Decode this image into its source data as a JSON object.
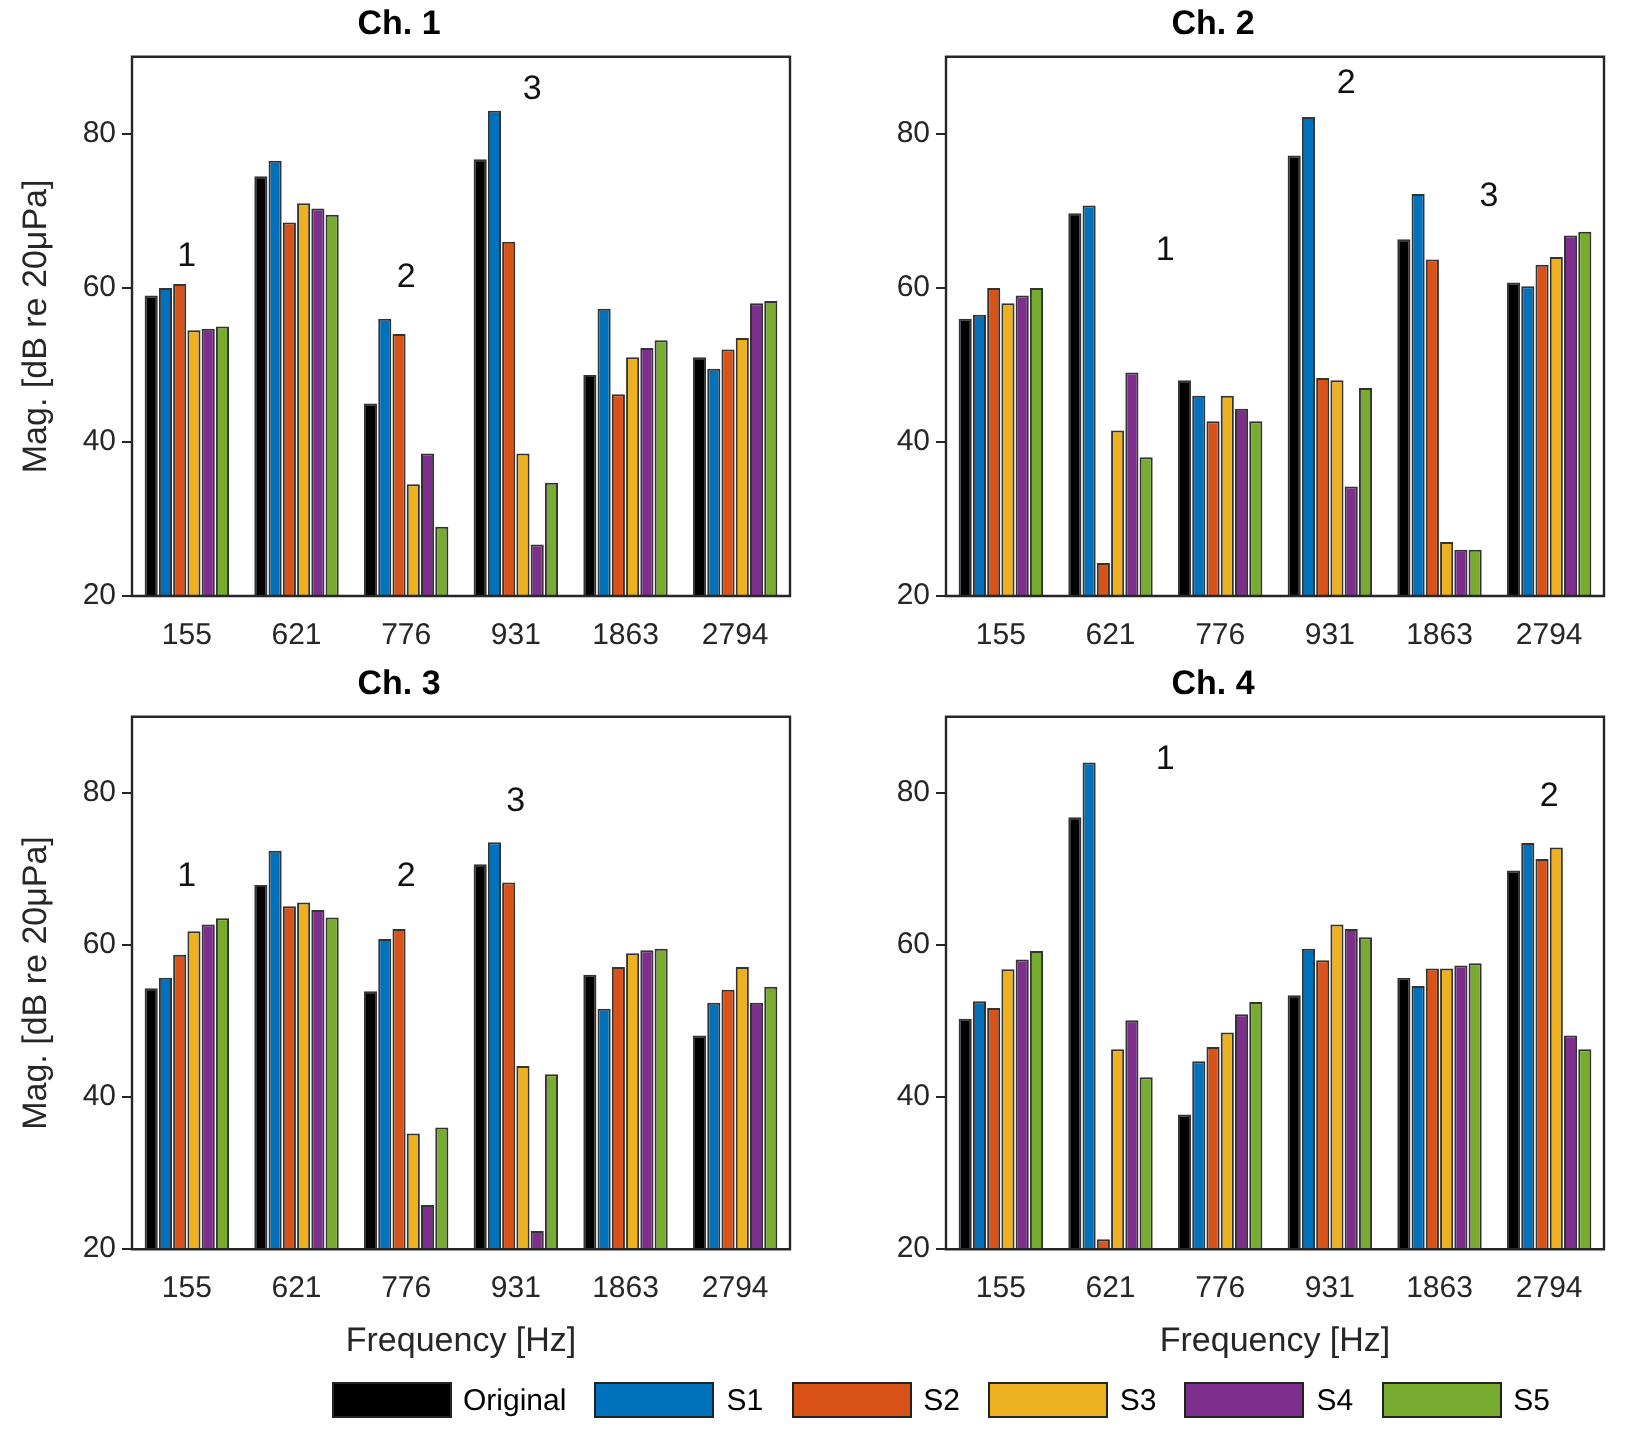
{
  "chart_data": [
    {
      "type": "bar",
      "title": "Ch. 1",
      "ylabel": "Mag. [dB re 20μPa]",
      "categories": [
        "155",
        "621",
        "776",
        "931",
        "1863",
        "2794"
      ],
      "ylim": [
        20,
        90
      ],
      "yticks": [
        20,
        40,
        60,
        80
      ],
      "grid": false,
      "legend": "bottom",
      "series": [
        {
          "name": "Original",
          "color": "#000000",
          "values": [
            59,
            74.5,
            45,
            76.7,
            48.7,
            51
          ]
        },
        {
          "name": "S1",
          "color": "#0072bd",
          "values": [
            60,
            76.5,
            56,
            83,
            57.3,
            49.5
          ]
        },
        {
          "name": "S2",
          "color": "#d95319",
          "values": [
            60.5,
            68.5,
            54,
            66,
            46.2,
            52
          ]
        },
        {
          "name": "S3",
          "color": "#edb120",
          "values": [
            54.5,
            71,
            34.5,
            38.5,
            51,
            53.5
          ]
        },
        {
          "name": "S4",
          "color": "#7e2f8e",
          "values": [
            54.7,
            70.3,
            38.5,
            26.7,
            52.2,
            58
          ]
        },
        {
          "name": "S5",
          "color": "#77ac30",
          "values": [
            55,
            69.5,
            29,
            34.7,
            53.2,
            58.3
          ]
        }
      ],
      "annotations": [
        "1",
        "2",
        "3"
      ]
    },
    {
      "type": "bar",
      "title": "Ch. 2",
      "categories": [
        "155",
        "621",
        "776",
        "931",
        "1863",
        "2794"
      ],
      "ylim": [
        20,
        90
      ],
      "yticks": [
        20,
        40,
        60,
        80
      ],
      "grid": false,
      "series": [
        {
          "color": "#000000",
          "values": [
            56,
            69.7,
            48,
            77.2,
            66.3,
            60.7
          ]
        },
        {
          "color": "#0072bd",
          "values": [
            56.5,
            70.7,
            46,
            82.2,
            72.2,
            60.2
          ]
        },
        {
          "color": "#d95319",
          "values": [
            60,
            24.3,
            42.7,
            48.3,
            63.7,
            63
          ]
        },
        {
          "color": "#edb120",
          "values": [
            58,
            41.5,
            46,
            48,
            27,
            64
          ]
        },
        {
          "color": "#7e2f8e",
          "values": [
            59,
            49,
            44.3,
            34.2,
            26,
            66.8
          ]
        },
        {
          "color": "#77ac30",
          "values": [
            60,
            38,
            42.7,
            47,
            26,
            67.3
          ]
        }
      ],
      "annotations": [
        "1",
        "2",
        "3"
      ]
    },
    {
      "type": "bar",
      "title": "Ch. 3",
      "xlabel": "Frequency [Hz]",
      "ylabel": "Mag. [dB re 20μPa]",
      "categories": [
        "155",
        "621",
        "776",
        "931",
        "1863",
        "2794"
      ],
      "ylim": [
        20,
        90
      ],
      "yticks": [
        20,
        40,
        60,
        80
      ],
      "grid": false,
      "series": [
        {
          "color": "#000000",
          "values": [
            54.3,
            67.9,
            53.9,
            70.6,
            56.1,
            48.1
          ]
        },
        {
          "color": "#0072bd",
          "values": [
            55.7,
            72.4,
            60.8,
            73.5,
            51.6,
            52.4
          ]
        },
        {
          "color": "#d95319",
          "values": [
            58.7,
            65.1,
            62.1,
            68.2,
            57.1,
            54.1
          ]
        },
        {
          "color": "#edb120",
          "values": [
            61.8,
            65.6,
            35.2,
            44.1,
            58.9,
            57.1
          ]
        },
        {
          "color": "#7e2f8e",
          "values": [
            62.7,
            64.6,
            25.8,
            22.4,
            59.3,
            52.4
          ]
        },
        {
          "color": "#77ac30",
          "values": [
            63.5,
            63.6,
            36,
            43,
            59.5,
            54.5
          ]
        }
      ],
      "annotations": [
        "1",
        "2",
        "3"
      ]
    },
    {
      "type": "bar",
      "title": "Ch. 4",
      "xlabel": "Frequency [Hz]",
      "categories": [
        "155",
        "621",
        "776",
        "931",
        "1863",
        "2794"
      ],
      "ylim": [
        20,
        90
      ],
      "yticks": [
        20,
        40,
        60,
        80
      ],
      "grid": false,
      "series": [
        {
          "color": "#000000",
          "values": [
            50.3,
            76.8,
            37.7,
            53.4,
            55.7,
            69.8
          ]
        },
        {
          "color": "#0072bd",
          "values": [
            52.6,
            84,
            44.7,
            59.5,
            54.6,
            73.4
          ]
        },
        {
          "color": "#d95319",
          "values": [
            51.7,
            21.3,
            46.6,
            58,
            56.9,
            71.3
          ]
        },
        {
          "color": "#edb120",
          "values": [
            56.8,
            46.3,
            48.5,
            62.7,
            56.9,
            72.8
          ]
        },
        {
          "color": "#7e2f8e",
          "values": [
            58.1,
            50.1,
            50.9,
            62.1,
            57.3,
            48.1
          ]
        },
        {
          "color": "#77ac30",
          "values": [
            59.2,
            42.6,
            52.5,
            61,
            57.6,
            46.3
          ]
        }
      ],
      "annotations": [
        "1",
        "2"
      ]
    }
  ]
}
